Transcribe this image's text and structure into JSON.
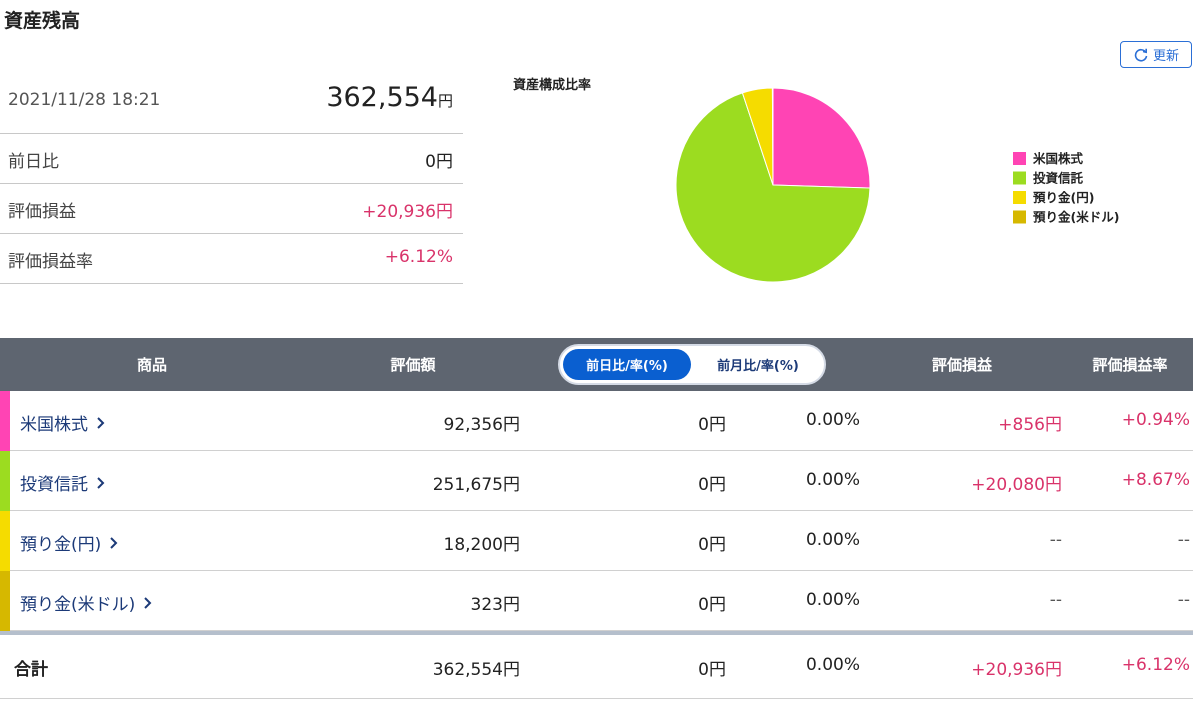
{
  "header": {
    "title": "資産残高",
    "refresh_button": "更新"
  },
  "summary": {
    "datetime": "2021/11/28 18:21",
    "total": "362,554",
    "total_unit": "円",
    "rows": [
      [
        "前日比",
        "0円"
      ],
      [
        "評価損益",
        "+20,936円"
      ],
      [
        "評価損益率",
        "+6.12%"
      ]
    ]
  },
  "chart_data": {
    "type": "pie",
    "title": "資産構成比率",
    "categories": [
      "米国株式",
      "投資信託",
      "預り金(円)",
      "預り金(米ドル)"
    ],
    "values": [
      25.5,
      69.4,
      5.0,
      0.1
    ],
    "colors": [
      "#ff44b4",
      "#9cdc20",
      "#f5dc00",
      "#d6b800"
    ],
    "legend": "right"
  },
  "table": {
    "columns": [
      "商品",
      "評価額",
      "評価損益",
      "評価損益率"
    ],
    "toggle": [
      "前日比/率(%)",
      "前月比/率(%)"
    ],
    "rows": [
      [
        "米国株式",
        "92,356円",
        "0円",
        "0.00%",
        "+856円",
        "+0.94%"
      ],
      [
        "投資信託",
        "251,675円",
        "0円",
        "0.00%",
        "+20,080円",
        "+8.67%"
      ],
      [
        "預り金(円)",
        "18,200円",
        "0円",
        "0.00%",
        "--",
        "--"
      ],
      [
        "預り金(米ドル)",
        "323円",
        "0円",
        "0.00%",
        "--",
        "--"
      ]
    ],
    "total": [
      "合計",
      "362,554円",
      "0円",
      "0.00%",
      "+20,936円",
      "+6.12%"
    ]
  }
}
